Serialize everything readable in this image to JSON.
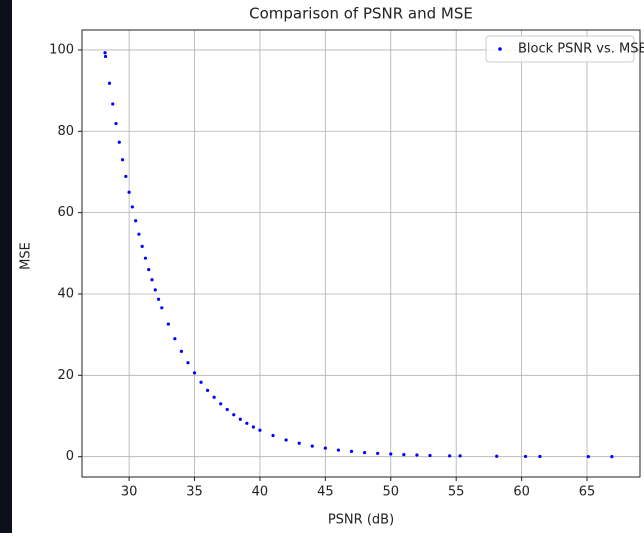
{
  "chart_data": {
    "type": "scatter",
    "title": "Comparison of PSNR and MSE",
    "x_label": "PSNR (dB)",
    "y_label": "MSE",
    "series": [
      {
        "name": "Block PSNR vs. MSE",
        "color": "#0000ff",
        "x": [
          28.16,
          28.2,
          28.5,
          28.75,
          29,
          29.25,
          29.5,
          29.75,
          30,
          30.25,
          30.5,
          30.75,
          31,
          31.25,
          31.5,
          31.75,
          32,
          32.25,
          32.5,
          33,
          33.5,
          34,
          34.5,
          35,
          35.5,
          36,
          36.5,
          37,
          37.5,
          38,
          38.5,
          39,
          39.5,
          40,
          41,
          42,
          43,
          44,
          45,
          46,
          47,
          48,
          49,
          50,
          51,
          52,
          53,
          54.5,
          55.3,
          58.1,
          60.3,
          61.4,
          65.1,
          66.9
        ],
        "values": [
          99.3,
          98.4,
          91.8,
          86.7,
          81.9,
          77.3,
          73.0,
          68.9,
          65.0,
          61.4,
          58.0,
          54.7,
          51.7,
          48.8,
          46.0,
          43.5,
          41.0,
          38.7,
          36.6,
          32.6,
          29.0,
          25.9,
          23.1,
          20.6,
          18.3,
          16.3,
          14.6,
          13.0,
          11.6,
          10.3,
          9.2,
          8.2,
          7.3,
          6.5,
          5.2,
          4.1,
          3.3,
          2.6,
          2.1,
          1.6,
          1.3,
          1.0,
          0.8,
          0.65,
          0.5,
          0.4,
          0.3,
          0.2,
          0.2,
          0.1,
          0.06,
          0.05,
          0.02,
          0.01
        ]
      }
    ],
    "xlim": [
      26.4,
      69.05
    ],
    "ylim": [
      -5,
      104.9
    ],
    "xticks": [
      30,
      35,
      40,
      45,
      50,
      55,
      60,
      65
    ],
    "yticks": [
      0,
      20,
      40,
      60,
      80,
      100
    ],
    "grid": true,
    "legend": "upper right"
  }
}
